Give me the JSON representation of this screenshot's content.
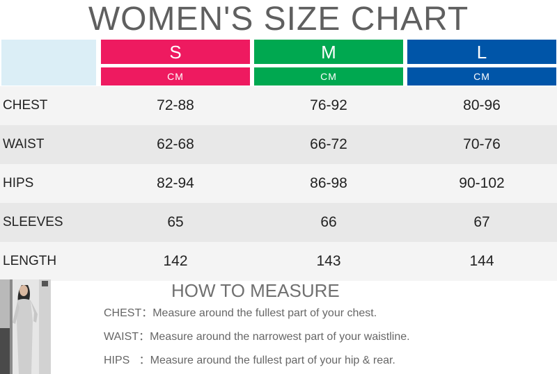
{
  "title": "WOMEN'S SIZE CHART",
  "sizes": [
    {
      "label": "S",
      "unit": "CM",
      "color": "#ee1a60"
    },
    {
      "label": "M",
      "unit": "CM",
      "color": "#00a850"
    },
    {
      "label": "L",
      "unit": "CM",
      "color": "#0055a8"
    }
  ],
  "table": {
    "rows": [
      {
        "name": "CHEST",
        "values": [
          "72-88",
          "76-92",
          "80-96"
        ]
      },
      {
        "name": "WAIST",
        "values": [
          "62-68",
          "66-72",
          "70-76"
        ]
      },
      {
        "name": "HIPS",
        "values": [
          "82-94",
          "86-98",
          "90-102"
        ]
      },
      {
        "name": "SLEEVES",
        "values": [
          "65",
          "66",
          "67"
        ]
      },
      {
        "name": "LENGTH",
        "values": [
          "142",
          "143",
          "144"
        ]
      }
    ]
  },
  "how_to_measure": {
    "title": "HOW TO MEASURE",
    "lines": [
      "CHEST：Measure around the fullest part of your chest.",
      "WAIST：Measure around the narrowest part of your waistline.",
      "HIPS   ：Measure around the fullest part of your hip & rear."
    ]
  },
  "colors": {
    "row_light": "#f4f4f4",
    "row_dark": "#e8e8e8",
    "corner": "#dbeef6"
  }
}
